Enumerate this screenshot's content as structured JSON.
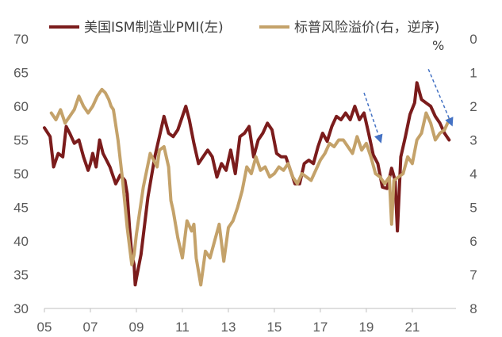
{
  "chart_data": {
    "type": "line",
    "title": "",
    "legend": {
      "placement": "top",
      "items": [
        {
          "label": "美国ISM制造业PMI(左)",
          "color": "#7b1c1c"
        },
        {
          "label": "标普风险溢价(右，逆序)",
          "color": "#c4a26a"
        }
      ]
    },
    "right_axis_unit": "%",
    "x_ticks": [
      "05",
      "07",
      "09",
      "11",
      "13",
      "15",
      "17",
      "19",
      "21"
    ],
    "x_tick_years": [
      2005,
      2007,
      2009,
      2011,
      2013,
      2015,
      2017,
      2019,
      2021
    ],
    "x_range": [
      2005,
      2022.9
    ],
    "y_left": {
      "ticks": [
        "70",
        "65",
        "60",
        "55",
        "50",
        "45",
        "40",
        "35",
        "30"
      ],
      "range": [
        30,
        70
      ]
    },
    "y_right": {
      "ticks": [
        "0",
        "1",
        "2",
        "3",
        "4",
        "5",
        "6",
        "7",
        "8"
      ],
      "range": [
        0,
        8
      ],
      "inverted": true
    },
    "grid": false,
    "series": [
      {
        "name": "美国ISM制造业PMI(左)",
        "axis": "left",
        "color": "#7b1c1c",
        "x": [
          2005.0,
          2005.25,
          2005.4,
          2005.6,
          2005.8,
          2005.95,
          2006.1,
          2006.3,
          2006.5,
          2006.7,
          2006.9,
          2007.0,
          2007.1,
          2007.25,
          2007.4,
          2007.55,
          2007.7,
          2007.85,
          2008.0,
          2008.1,
          2008.3,
          2008.5,
          2008.6,
          2008.7,
          2008.8,
          2008.9,
          2008.95,
          2009.0,
          2009.2,
          2009.5,
          2009.8,
          2010.0,
          2010.2,
          2010.4,
          2010.6,
          2010.8,
          2011.0,
          2011.15,
          2011.3,
          2011.5,
          2011.7,
          2011.9,
          2012.1,
          2012.3,
          2012.5,
          2012.7,
          2012.9,
          2013.1,
          2013.3,
          2013.5,
          2013.7,
          2013.9,
          2014.1,
          2014.3,
          2014.5,
          2014.7,
          2014.9,
          2015.1,
          2015.3,
          2015.5,
          2015.7,
          2015.9,
          2016.1,
          2016.3,
          2016.5,
          2016.7,
          2016.9,
          2017.1,
          2017.3,
          2017.5,
          2017.7,
          2017.9,
          2018.1,
          2018.3,
          2018.5,
          2018.7,
          2018.9,
          2019.1,
          2019.3,
          2019.5,
          2019.7,
          2019.9,
          2020.1,
          2020.25,
          2020.35,
          2020.5,
          2020.7,
          2020.9,
          2021.1,
          2021.2,
          2021.4,
          2021.6,
          2021.8,
          2022.0,
          2022.2,
          2022.4,
          2022.6
        ],
        "values": [
          56.8,
          55.5,
          51.0,
          53.0,
          52.5,
          57.0,
          56.0,
          54.5,
          55.0,
          52.5,
          50.5,
          51.5,
          53.0,
          51.0,
          55.0,
          53.0,
          52.0,
          51.0,
          49.5,
          48.5,
          49.8,
          49.0,
          47.0,
          42.0,
          38.0,
          36.5,
          33.5,
          34.5,
          38.0,
          46.5,
          52.5,
          55.5,
          58.5,
          56.0,
          55.5,
          56.5,
          58.5,
          60.0,
          58.0,
          54.5,
          51.5,
          52.5,
          53.5,
          52.5,
          49.5,
          51.5,
          50.5,
          53.5,
          50.0,
          55.5,
          56.0,
          57.0,
          52.5,
          55.0,
          56.0,
          57.5,
          56.5,
          53.0,
          52.5,
          52.5,
          50.5,
          48.5,
          48.5,
          51.5,
          52.0,
          51.5,
          54.0,
          56.0,
          54.8,
          57.0,
          58.5,
          58.0,
          59.0,
          58.0,
          60.0,
          58.0,
          59.0,
          56.0,
          52.8,
          51.5,
          48.0,
          47.8,
          50.8,
          49.0,
          41.5,
          52.5,
          55.5,
          58.8,
          60.5,
          63.5,
          61.0,
          60.5,
          60.0,
          58.5,
          57.5,
          56.0,
          55.0
        ]
      },
      {
        "name": "标普风险溢价(右，逆序)",
        "axis": "right",
        "color": "#c4a26a",
        "x": [
          2005.3,
          2005.5,
          2005.7,
          2005.9,
          2006.1,
          2006.3,
          2006.5,
          2006.7,
          2006.9,
          2007.1,
          2007.3,
          2007.5,
          2007.65,
          2007.8,
          2007.9,
          2008.0,
          2008.2,
          2008.4,
          2008.6,
          2008.8,
          2008.9,
          2009.0,
          2009.3,
          2009.6,
          2009.9,
          2010.0,
          2010.2,
          2010.4,
          2010.5,
          2010.6,
          2010.8,
          2011.0,
          2011.2,
          2011.4,
          2011.5,
          2011.6,
          2011.8,
          2012.0,
          2012.2,
          2012.4,
          2012.6,
          2012.8,
          2013.0,
          2013.2,
          2013.4,
          2013.6,
          2013.8,
          2014.0,
          2014.2,
          2014.4,
          2014.6,
          2014.8,
          2015.0,
          2015.2,
          2015.4,
          2015.6,
          2015.8,
          2016.0,
          2016.2,
          2016.4,
          2016.6,
          2016.8,
          2017.0,
          2017.2,
          2017.4,
          2017.6,
          2017.8,
          2018.0,
          2018.2,
          2018.4,
          2018.6,
          2018.8,
          2019.0,
          2019.2,
          2019.4,
          2019.6,
          2019.8,
          2020.0,
          2020.1,
          2020.2,
          2020.4,
          2020.6,
          2020.8,
          2021.0,
          2021.2,
          2021.4,
          2021.6,
          2021.8,
          2022.0,
          2022.2,
          2022.4,
          2022.6
        ],
        "values": [
          2.2,
          2.4,
          2.1,
          2.5,
          2.3,
          2.1,
          1.7,
          2.0,
          2.2,
          2.0,
          1.7,
          1.5,
          1.6,
          1.8,
          2.0,
          2.1,
          3.0,
          4.2,
          5.6,
          6.7,
          6.4,
          5.8,
          4.4,
          3.4,
          3.8,
          3.3,
          3.2,
          3.8,
          4.8,
          5.1,
          5.9,
          6.5,
          5.4,
          5.7,
          5.5,
          6.5,
          7.3,
          6.3,
          6.5,
          6.0,
          5.5,
          6.6,
          5.6,
          5.4,
          5.0,
          4.5,
          3.8,
          4.0,
          3.5,
          3.9,
          3.8,
          4.1,
          4.0,
          3.8,
          3.9,
          3.7,
          4.1,
          4.3,
          4.0,
          4.1,
          4.2,
          3.9,
          3.6,
          3.4,
          3.1,
          3.2,
          3.0,
          3.0,
          3.2,
          3.4,
          2.9,
          3.3,
          3.1,
          3.5,
          4.0,
          4.1,
          4.3,
          4.1,
          5.5,
          4.2,
          4.1,
          4.0,
          3.5,
          3.7,
          3.0,
          2.8,
          2.2,
          2.5,
          3.0,
          2.8,
          2.7,
          2.4
        ]
      }
    ],
    "annotations": [
      {
        "type": "arrow",
        "style": "dashed",
        "color": "#4472c4",
        "from": {
          "x": 2018.9,
          "y_right": 1.6
        },
        "to": {
          "x": 2019.65,
          "y_right": 3.1
        }
      },
      {
        "type": "arrow",
        "style": "dashed",
        "color": "#4472c4",
        "from": {
          "x": 2021.7,
          "y_right": 0.9
        },
        "to": {
          "x": 2022.75,
          "y_right": 2.6
        }
      }
    ]
  }
}
